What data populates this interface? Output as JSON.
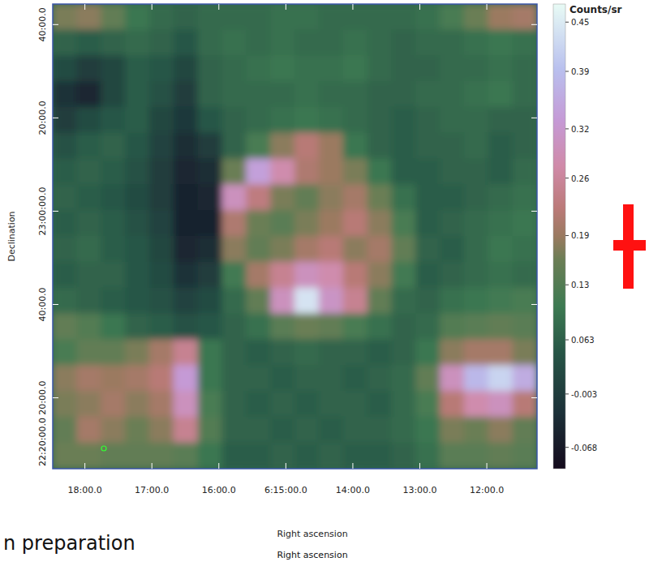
{
  "chart_data": {
    "type": "heatmap",
    "xlabel": "Right ascension",
    "ylabel": "Declination",
    "xlim": [
      18.48,
      11.25
    ],
    "ylim": [
      22.08,
      23.74
    ],
    "xticks": [
      {
        "value": 18,
        "label": "18:00.0"
      },
      {
        "value": 17,
        "label": "17:00.0"
      },
      {
        "value": 16,
        "label": "16:00.0"
      },
      {
        "value": 15,
        "label": "6:15:00.0"
      },
      {
        "value": 14,
        "label": "14:00.0"
      },
      {
        "value": 13,
        "label": "13:00.0"
      },
      {
        "value": 12,
        "label": "12:00.0"
      }
    ],
    "yticks": [
      {
        "value": 23.6667,
        "label": "40:00.0"
      },
      {
        "value": 23.3333,
        "label": "20:00.0"
      },
      {
        "value": 23.0,
        "label": "23:00:00.0"
      },
      {
        "value": 22.6667,
        "label": "40:00.0"
      },
      {
        "value": 22.3333,
        "label": "20:00.0"
      }
    ],
    "colorbar": {
      "label": "Counts/sr",
      "range": [
        -0.094,
        0.472
      ],
      "ticks": [
        0.45,
        0.39,
        0.32,
        0.26,
        0.19,
        0.13,
        0.063,
        -0.003,
        -0.068
      ]
    },
    "annotations": [
      {
        "text": "22:20:00.0"
      },
      {
        "text": "Right ascension"
      },
      {
        "text": "n preparation"
      }
    ],
    "cells": [
      [
        0.17,
        0.18,
        0.15,
        0.1,
        0.08,
        0.07,
        0.08,
        0.08,
        0.08,
        0.09,
        0.09,
        0.08,
        0.08,
        0.08,
        0.08,
        0.09,
        0.12,
        0.16,
        0.19,
        0.2
      ],
      [
        0.07,
        0.06,
        0.07,
        0.08,
        0.07,
        0.05,
        0.08,
        0.09,
        0.08,
        0.09,
        0.08,
        0.08,
        0.09,
        0.08,
        0.07,
        0.08,
        0.08,
        0.09,
        0.1,
        0.09
      ],
      [
        0.03,
        0.0,
        0.02,
        0.06,
        0.05,
        0.02,
        0.07,
        0.08,
        0.09,
        0.1,
        0.09,
        0.09,
        0.1,
        0.08,
        0.07,
        0.07,
        0.08,
        0.08,
        0.09,
        0.08
      ],
      [
        -0.02,
        -0.04,
        0.02,
        0.06,
        0.04,
        0.0,
        0.07,
        0.08,
        0.08,
        0.08,
        0.09,
        0.08,
        0.08,
        0.07,
        0.07,
        0.08,
        0.08,
        0.09,
        0.1,
        0.08
      ],
      [
        0.0,
        0.03,
        0.05,
        0.06,
        0.02,
        -0.01,
        0.05,
        0.07,
        0.08,
        0.09,
        0.1,
        0.09,
        0.08,
        0.07,
        0.06,
        0.07,
        0.08,
        0.08,
        0.07,
        0.07
      ],
      [
        0.04,
        0.06,
        0.07,
        0.05,
        0.01,
        -0.03,
        0.0,
        0.07,
        0.12,
        0.18,
        0.22,
        0.19,
        0.1,
        0.07,
        0.06,
        0.07,
        0.07,
        0.08,
        0.06,
        0.07
      ],
      [
        0.06,
        0.07,
        0.06,
        0.04,
        0.0,
        -0.04,
        -0.03,
        0.16,
        0.34,
        0.28,
        0.21,
        0.19,
        0.17,
        0.1,
        0.06,
        0.06,
        0.07,
        0.07,
        0.06,
        0.08
      ],
      [
        0.07,
        0.06,
        0.05,
        0.03,
        0.0,
        -0.05,
        -0.04,
        0.3,
        0.23,
        0.17,
        0.15,
        0.18,
        0.2,
        0.16,
        0.09,
        0.06,
        0.06,
        0.07,
        0.08,
        0.09
      ],
      [
        0.06,
        0.07,
        0.06,
        0.04,
        0.01,
        -0.05,
        -0.05,
        0.21,
        0.16,
        0.14,
        0.17,
        0.19,
        0.22,
        0.18,
        0.12,
        0.06,
        0.07,
        0.08,
        0.09,
        0.1
      ],
      [
        0.07,
        0.08,
        0.06,
        0.05,
        0.02,
        -0.04,
        -0.03,
        0.18,
        0.15,
        0.17,
        0.2,
        0.22,
        0.18,
        0.2,
        0.15,
        0.07,
        0.06,
        0.08,
        0.1,
        0.09
      ],
      [
        0.06,
        0.07,
        0.07,
        0.05,
        0.03,
        -0.02,
        0.0,
        0.11,
        0.2,
        0.25,
        0.3,
        0.28,
        0.22,
        0.18,
        0.11,
        0.06,
        0.07,
        0.08,
        0.09,
        0.08
      ],
      [
        0.08,
        0.07,
        0.06,
        0.05,
        0.04,
        0.01,
        0.03,
        0.08,
        0.15,
        0.3,
        0.44,
        0.31,
        0.25,
        0.15,
        0.08,
        0.07,
        0.09,
        0.1,
        0.11,
        0.12
      ],
      [
        0.15,
        0.13,
        0.1,
        0.07,
        0.06,
        0.04,
        0.05,
        0.07,
        0.09,
        0.14,
        0.16,
        0.15,
        0.12,
        0.09,
        0.07,
        0.08,
        0.13,
        0.14,
        0.15,
        0.14
      ],
      [
        0.12,
        0.15,
        0.15,
        0.17,
        0.2,
        0.25,
        0.1,
        0.07,
        0.06,
        0.07,
        0.08,
        0.07,
        0.07,
        0.06,
        0.07,
        0.1,
        0.18,
        0.2,
        0.2,
        0.17
      ],
      [
        0.18,
        0.2,
        0.19,
        0.2,
        0.22,
        0.33,
        0.1,
        0.07,
        0.07,
        0.06,
        0.07,
        0.07,
        0.06,
        0.07,
        0.08,
        0.15,
        0.3,
        0.38,
        0.42,
        0.36
      ],
      [
        0.17,
        0.18,
        0.2,
        0.18,
        0.2,
        0.3,
        0.12,
        0.07,
        0.06,
        0.07,
        0.06,
        0.07,
        0.07,
        0.06,
        0.08,
        0.12,
        0.22,
        0.28,
        0.3,
        0.22
      ],
      [
        0.15,
        0.2,
        0.18,
        0.16,
        0.18,
        0.25,
        0.13,
        0.07,
        0.07,
        0.06,
        0.07,
        0.06,
        0.07,
        0.07,
        0.08,
        0.1,
        0.17,
        0.16,
        0.18,
        0.15
      ],
      [
        0.16,
        0.16,
        0.15,
        0.15,
        0.15,
        0.14,
        0.1,
        0.06,
        0.06,
        0.07,
        0.06,
        0.07,
        0.06,
        0.06,
        0.07,
        0.09,
        0.14,
        0.14,
        0.15,
        0.14
      ]
    ]
  }
}
